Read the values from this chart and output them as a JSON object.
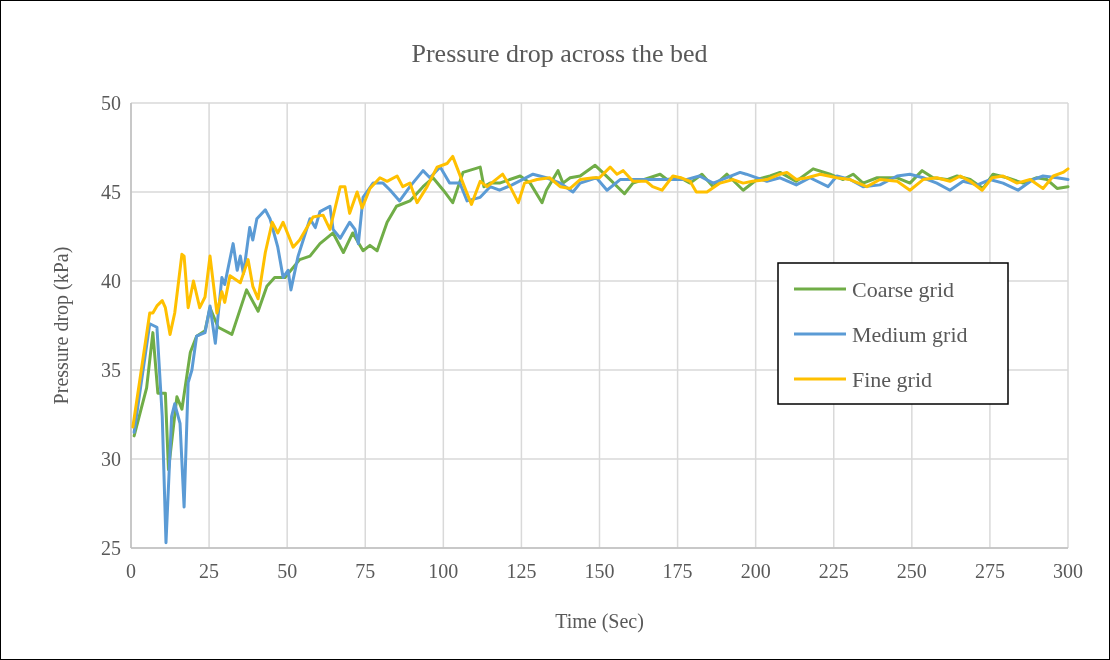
{
  "chart_data": {
    "type": "line",
    "title": "Pressure drop across the bed",
    "xlabel": "Time (Sec)",
    "ylabel": "Pressure drop (kPa)",
    "xlim": [
      0,
      300
    ],
    "xticks": [
      0,
      25,
      50,
      75,
      100,
      125,
      150,
      175,
      200,
      225,
      250,
      275,
      300
    ],
    "ylim": [
      25,
      50
    ],
    "yticks": [
      25,
      30,
      35,
      40,
      45,
      50
    ],
    "grid": true,
    "legend": "right",
    "marker": "none",
    "line_style": "solid",
    "series": [
      {
        "name": "Coarse grid",
        "color": "#70ad47",
        "x": [
          1,
          5,
          7,
          8.6,
          11,
          12,
          14.7,
          16.3,
          19,
          21,
          23.7,
          25.3,
          27.9,
          32.3,
          37,
          40.7,
          43.5,
          46,
          49.3,
          54,
          57.3,
          60.5,
          64.7,
          68,
          71,
          74.3,
          76.5,
          78.8,
          82,
          85,
          89.3,
          93.5,
          96.7,
          100,
          103,
          106.3,
          111.8,
          113,
          115,
          118,
          124.6,
          127.8,
          131.6,
          133,
          136.7,
          138.3,
          140.6,
          143.8,
          148.6,
          151,
          153.4,
          158,
          160.7,
          169.4,
          171.6,
          175.8,
          179,
          182.8,
          186.4,
          190.8,
          196,
          200.4,
          204.6,
          207.8,
          213,
          218.4,
          223.8,
          228,
          231.2,
          234.4,
          238.9,
          245.3,
          249.4,
          253.3,
          256.8,
          261.3,
          264.5,
          268.7,
          272.8,
          276,
          280.5,
          285.6,
          290,
          293.3,
          296.5,
          300
        ],
        "values": [
          31.3,
          34,
          37.1,
          33.7,
          33.7,
          29.4,
          33.5,
          32.8,
          36,
          36.9,
          37.2,
          38.5,
          37.4,
          37,
          39.5,
          38.3,
          39.7,
          40.2,
          40.2,
          41.2,
          41.4,
          42.1,
          42.7,
          41.6,
          42.7,
          41.7,
          42,
          41.7,
          43.3,
          44.2,
          44.5,
          45.3,
          45.8,
          45.1,
          44.4,
          46.1,
          46.4,
          45.3,
          45.5,
          45.5,
          45.9,
          45.5,
          44.4,
          45.1,
          46.2,
          45.5,
          45.8,
          45.9,
          46.5,
          46.1,
          45.7,
          44.9,
          45.5,
          46,
          45.7,
          45.8,
          45.5,
          46,
          45.3,
          46,
          45.1,
          45.7,
          45.9,
          46.1,
          45.6,
          46.3,
          46,
          45.7,
          46,
          45.5,
          45.8,
          45.8,
          45.5,
          46.2,
          45.8,
          45.7,
          45.9,
          45.7,
          45.2,
          46,
          45.8,
          45.5,
          45.8,
          45.7,
          45.2,
          45.3
        ]
      },
      {
        "name": "Medium grid",
        "color": "#5b9bd5",
        "x": [
          1,
          6,
          8.3,
          10,
          11.2,
          13,
          14,
          15.7,
          17,
          18.3,
          19.5,
          21,
          23.7,
          25.3,
          27,
          29.1,
          30,
          32.7,
          34,
          35,
          36,
          38,
          39,
          40.3,
          43,
          44.5,
          47,
          48.7,
          50.3,
          51.2,
          53.5,
          57.3,
          59,
          60.5,
          63.7,
          64.7,
          67,
          70,
          71.7,
          72.8,
          74.3,
          77.5,
          80.7,
          83,
          86,
          89.3,
          93.5,
          95.7,
          99,
          102,
          105.3,
          107.6,
          111.8,
          115,
          118,
          122,
          128.7,
          133,
          137.4,
          141.5,
          143.8,
          149,
          152.4,
          156.6,
          163,
          171.6,
          178,
          182,
          186.4,
          195,
          197,
          203.6,
          207.8,
          213,
          217.4,
          223.2,
          226,
          230.2,
          234.4,
          239.8,
          245.3,
          249.4,
          253.6,
          258,
          262.2,
          266.4,
          271,
          275,
          279.2,
          284,
          288.8,
          292,
          296.5,
          300
        ],
        "values": [
          31.5,
          37.6,
          37.4,
          32.4,
          25.3,
          32.4,
          33.1,
          32,
          27.3,
          34.3,
          35,
          36.9,
          37.1,
          38.6,
          36.5,
          40.2,
          39.8,
          42.1,
          40.6,
          41.4,
          40.4,
          43,
          42.3,
          43.5,
          44,
          43.5,
          41.9,
          40.2,
          40.6,
          39.5,
          41.4,
          43.5,
          43,
          43.9,
          44.2,
          42.9,
          42.4,
          43.3,
          42.9,
          42.1,
          44.7,
          45.5,
          45.5,
          45.1,
          44.5,
          45.3,
          46.2,
          45.8,
          46.4,
          45.5,
          45.5,
          44.5,
          44.7,
          45.3,
          45.1,
          45.4,
          46,
          45.8,
          45.5,
          45,
          45.5,
          45.8,
          45.1,
          45.7,
          45.7,
          45.7,
          45.7,
          45.9,
          45.5,
          46.1,
          46,
          45.6,
          45.8,
          45.4,
          45.8,
          45.3,
          45.9,
          45.7,
          45.3,
          45.4,
          45.9,
          46,
          45.8,
          45.5,
          45.1,
          45.6,
          45.4,
          45.7,
          45.5,
          45.1,
          45.7,
          45.9,
          45.8,
          45.7
        ]
      },
      {
        "name": "Fine grid",
        "color": "#ffc000",
        "x": [
          0.6,
          6,
          7,
          8.3,
          10,
          11,
          12.5,
          14,
          16.3,
          17,
          18.3,
          20,
          22,
          23.7,
          25.3,
          27.5,
          29.1,
          30,
          31.7,
          35,
          37.5,
          39,
          40.7,
          43,
          45.2,
          47,
          48.7,
          51.9,
          54,
          58.3,
          61.5,
          63.7,
          67,
          68.5,
          70,
          72.4,
          74,
          76.5,
          79.7,
          82,
          85.2,
          87,
          89.3,
          91.6,
          94.8,
          98,
          101.2,
          103,
          106.3,
          109,
          111.8,
          114,
          119,
          121.4,
          124,
          126,
          130,
          134,
          137.4,
          140.6,
          143.8,
          148,
          150,
          153.4,
          155.6,
          157.6,
          160.7,
          165,
          167,
          170,
          173.5,
          176,
          179,
          181,
          184.4,
          188.6,
          192.8,
          196,
          199,
          203.6,
          207.8,
          210,
          213,
          216.5,
          220.6,
          226,
          230.2,
          235.6,
          239.8,
          245.3,
          249.4,
          253.6,
          258,
          262.2,
          265.5,
          268.7,
          272.5,
          275.7,
          279.2,
          283.7,
          287.9,
          292,
          295.3,
          298.4,
          300
        ],
        "values": [
          31.8,
          38.2,
          38.2,
          38.6,
          38.9,
          38.5,
          37,
          38.2,
          41.5,
          41.4,
          38.5,
          40,
          38.5,
          39.1,
          41.4,
          38.2,
          39.4,
          38.8,
          40.3,
          39.9,
          41.2,
          39.7,
          39,
          41.6,
          43.3,
          42.7,
          43.3,
          41.9,
          42.3,
          43.6,
          43.7,
          42.9,
          45.3,
          45.3,
          43.8,
          45,
          44.1,
          45.2,
          45.8,
          45.6,
          45.9,
          45.3,
          45.5,
          44.4,
          45.3,
          46.4,
          46.6,
          47,
          45.5,
          44.3,
          45.6,
          45.3,
          46,
          45.3,
          44.4,
          45.5,
          45.7,
          45.8,
          45.3,
          45.2,
          45.7,
          45.8,
          45.8,
          46.4,
          46,
          46.2,
          45.6,
          45.6,
          45.3,
          45.1,
          45.9,
          45.8,
          45.6,
          45,
          45,
          45.5,
          45.7,
          45.5,
          45.6,
          45.7,
          46,
          46.1,
          45.7,
          45.8,
          46,
          45.8,
          45.7,
          45.3,
          45.7,
          45.6,
          45.1,
          45.7,
          45.8,
          45.6,
          45.9,
          45.6,
          45.1,
          45.8,
          45.9,
          45.5,
          45.7,
          45.2,
          45.9,
          46.1,
          46.3
        ]
      }
    ]
  }
}
